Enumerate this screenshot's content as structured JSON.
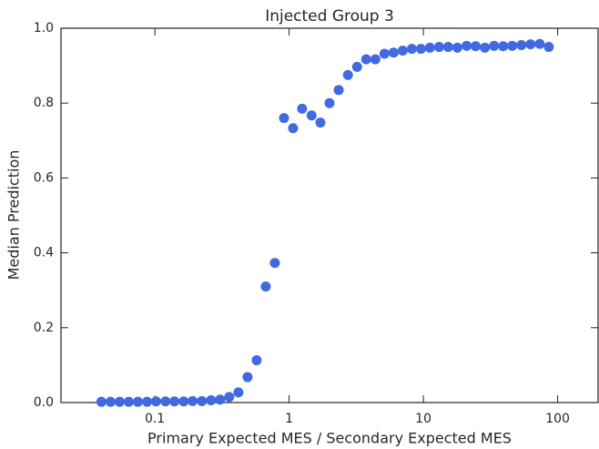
{
  "chart_data": {
    "type": "scatter",
    "title": "Injected Group 3",
    "x_label": "Primary Expected MES / Secondary Expected MES",
    "y_label": "Median Prediction",
    "x_scale": "log",
    "color": "#4169e1",
    "xlim": [
      0.02,
      200
    ],
    "ylim": [
      0,
      1
    ],
    "xticks": [
      0.1,
      1,
      10,
      100
    ],
    "yticks": [
      {
        "value": 0,
        "label": "0.0"
      },
      0.2,
      0.4,
      0.6,
      0.8,
      {
        "value": 1,
        "label": "1.0"
      }
    ],
    "x": [
      0.04,
      0.0468,
      0.0547,
      0.064,
      0.0748,
      0.0875,
      0.102,
      0.12,
      0.14,
      0.164,
      0.191,
      0.224,
      0.262,
      0.306,
      0.358,
      0.419,
      0.49,
      0.573,
      0.67,
      0.783,
      0.916,
      1.07,
      1.25,
      1.47,
      1.71,
      2.0,
      2.34,
      2.74,
      3.21,
      3.75,
      4.39,
      5.13,
      6.0,
      7.01,
      8.2,
      9.59,
      11.2,
      13.1,
      15.3,
      17.9,
      21.0,
      24.5,
      28.7,
      33.6,
      39.3,
      45.9,
      53.7,
      62.8,
      73.5,
      85.9
    ],
    "values": [
      0.002,
      0.002,
      0.002,
      0.002,
      0.002,
      0.002,
      0.003,
      0.003,
      0.003,
      0.003,
      0.004,
      0.004,
      0.006,
      0.008,
      0.015,
      0.027,
      0.068,
      0.113,
      0.31,
      0.373,
      0.76,
      0.733,
      0.785,
      0.767,
      0.748,
      0.8,
      0.835,
      0.875,
      0.897,
      0.917,
      0.917,
      0.932,
      0.935,
      0.94,
      0.945,
      0.945,
      0.948,
      0.95,
      0.95,
      0.948,
      0.953,
      0.952,
      0.948,
      0.953,
      0.952,
      0.953,
      0.955,
      0.957,
      0.958,
      0.95
    ]
  }
}
